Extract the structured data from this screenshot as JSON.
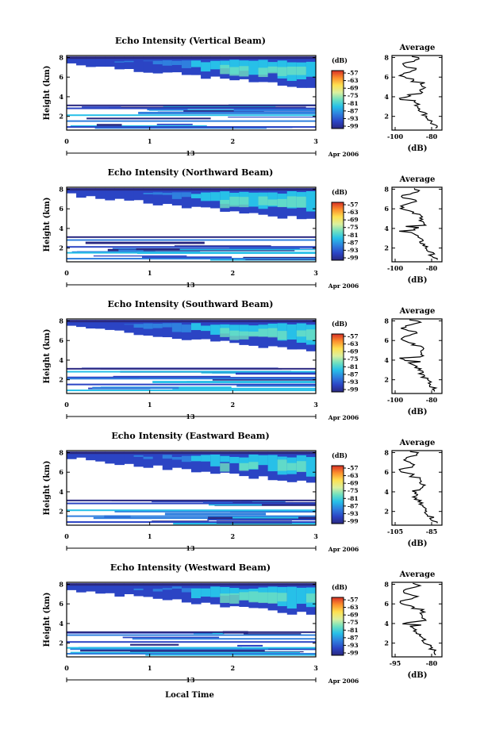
{
  "chart_data": [
    {
      "type": "heatmap",
      "title": "Echo Intensity (Vertical Beam)",
      "ylabel": "Height (km)",
      "xticks": [
        "0",
        "1",
        "2",
        "3"
      ],
      "yticks": [
        "2",
        "4",
        "6",
        "8"
      ],
      "xlim": [
        0,
        3
      ],
      "ylim": [
        0.6,
        8.2
      ],
      "date_label": "13",
      "month_label": "Apr 2006",
      "colorbar_unit": "(dB)",
      "colorbar_ticks": [
        "-57",
        "-63",
        "-69",
        "-75",
        "-81",
        "-87",
        "-93",
        "-99"
      ],
      "avg_title": "Average",
      "avg_xlabel": "(dB)",
      "avg_xticks": [
        "-100",
        "-80"
      ],
      "avg_yticks": [
        "2",
        "4",
        "6",
        "8"
      ]
    },
    {
      "type": "heatmap",
      "title": "Echo Intensity (Northward Beam)",
      "ylabel": "Height (km)",
      "xticks": [
        "0",
        "1",
        "2",
        "3"
      ],
      "yticks": [
        "2",
        "4",
        "6",
        "8"
      ],
      "xlim": [
        0,
        3
      ],
      "ylim": [
        0.6,
        8.2
      ],
      "date_label": "13",
      "month_label": "Apr 2006",
      "colorbar_unit": "(dB)",
      "colorbar_ticks": [
        "-57",
        "-63",
        "-69",
        "-75",
        "-81",
        "-87",
        "-93",
        "-99"
      ],
      "avg_title": "Average",
      "avg_xlabel": "(dB)",
      "avg_xticks": [
        "-100",
        "-80"
      ],
      "avg_yticks": [
        "2",
        "4",
        "6",
        "8"
      ]
    },
    {
      "type": "heatmap",
      "title": "Echo Intensity (Southward Beam)",
      "ylabel": "Height (km)",
      "xticks": [
        "0",
        "1",
        "2",
        "3"
      ],
      "yticks": [
        "2",
        "4",
        "6",
        "8"
      ],
      "xlim": [
        0,
        3
      ],
      "ylim": [
        0.6,
        8.2
      ],
      "date_label": "13",
      "month_label": "Apr 2006",
      "colorbar_unit": "(dB)",
      "colorbar_ticks": [
        "-57",
        "-63",
        "-69",
        "-75",
        "-81",
        "-87",
        "-93",
        "-99"
      ],
      "avg_title": "Average",
      "avg_xlabel": "(dB)",
      "avg_xticks": [
        "-100",
        "-80"
      ],
      "avg_yticks": [
        "2",
        "4",
        "6",
        "8"
      ]
    },
    {
      "type": "heatmap",
      "title": "Echo Intensity (Eastward Beam)",
      "ylabel": "Height (km)",
      "xticks": [
        "0",
        "1",
        "2",
        "3"
      ],
      "yticks": [
        "2",
        "4",
        "6",
        "8"
      ],
      "xlim": [
        0,
        3
      ],
      "ylim": [
        0.6,
        8.2
      ],
      "date_label": "13",
      "month_label": "Apr 2006",
      "colorbar_unit": "(dB)",
      "colorbar_ticks": [
        "-57",
        "-63",
        "-69",
        "-75",
        "-81",
        "-87",
        "-93",
        "-99"
      ],
      "avg_title": "Average",
      "avg_xlabel": "(dB)",
      "avg_xticks": [
        "-105",
        "-85"
      ],
      "avg_yticks": [
        "2",
        "4",
        "6",
        "8"
      ]
    },
    {
      "type": "heatmap",
      "title": "Echo Intensity (Westward Beam)",
      "ylabel": "Height (km)",
      "xticks": [
        "0",
        "1",
        "2",
        "3"
      ],
      "yticks": [
        "2",
        "4",
        "6",
        "8"
      ],
      "xlim": [
        0,
        3
      ],
      "ylim": [
        0.6,
        8.2
      ],
      "date_label": "13",
      "month_label": "Apr 2006",
      "colorbar_unit": "(dB)",
      "colorbar_ticks": [
        "-57",
        "-63",
        "-69",
        "-75",
        "-81",
        "-87",
        "-93",
        "-99"
      ],
      "avg_title": "Average",
      "avg_xlabel": "(dB)",
      "avg_xticks": [
        "-95",
        "-80"
      ],
      "avg_yticks": [
        "2",
        "4",
        "6",
        "8"
      ]
    }
  ],
  "xlabel": "Local Time",
  "colorbar_colors": [
    "#d73027",
    "#fb8c2c",
    "#fee050",
    "#d9f0a0",
    "#6fe0c0",
    "#27c0e8",
    "#2f7fde",
    "#2b44c4",
    "#2a2880"
  ]
}
